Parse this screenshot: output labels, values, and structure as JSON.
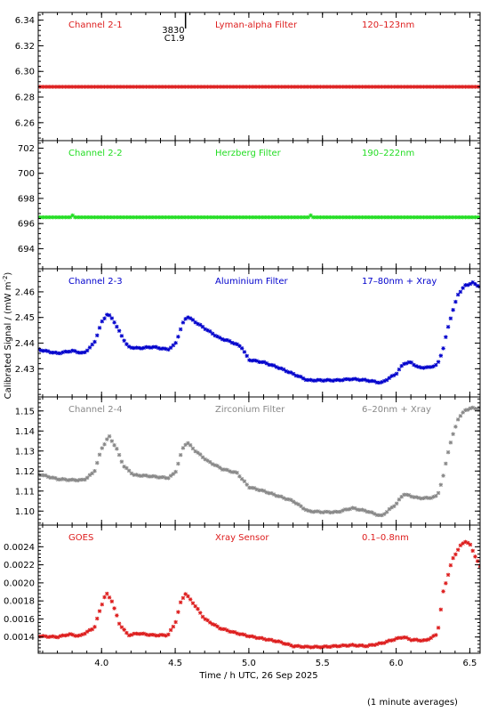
{
  "chart_data": {
    "type": "scatter",
    "x_label": "Time / h UTC, 26 Sep 2025",
    "x_range": [
      3.57,
      6.57
    ],
    "x_ticks": [
      4.0,
      4.5,
      5.0,
      5.5,
      6.0,
      6.5
    ],
    "x_tick_labels": [
      "4.0",
      "4.5",
      "5.0",
      "5.5",
      "6.0",
      "6.5"
    ],
    "y_label": "Calibrated Signal / (mW m",
    "y_label_sup": "-2",
    "y_label_close": ")",
    "footnote": "(1 minute averages)",
    "event_marker": {
      "x": 4.57,
      "label_top": "3830",
      "label_bottom": "C1.9"
    },
    "panels": [
      {
        "channel": "Channel 2-1",
        "filter": "Lyman-alpha Filter",
        "band": "120–123nm",
        "color": "#dd1c1c",
        "y_range": [
          6.246,
          6.346
        ],
        "y_ticks": [
          6.26,
          6.28,
          6.3,
          6.32,
          6.34
        ],
        "y_tick_labels": [
          "6.26",
          "6.28",
          "6.30",
          "6.32",
          "6.34"
        ],
        "model": "flat",
        "base": 6.288
      },
      {
        "channel": "Channel 2-2",
        "filter": "Herzberg Filter",
        "band": "190–222nm",
        "color": "#22dd22",
        "y_range": [
          692.4,
          702.6
        ],
        "y_ticks": [
          694,
          696,
          698,
          700,
          702
        ],
        "y_tick_labels": [
          "694",
          "696",
          "698",
          "700",
          "702"
        ],
        "model": "flat",
        "base": 696.5
      },
      {
        "channel": "Channel 2-3",
        "filter": "Aluminium Filter",
        "band": "17–80nm + Xray",
        "color": "#0000cc",
        "y_range": [
          2.419,
          2.469
        ],
        "y_ticks": [
          2.43,
          2.44,
          2.45,
          2.46
        ],
        "y_tick_labels": [
          "2.43",
          "2.44",
          "2.45",
          "2.46"
        ],
        "model": "flare",
        "keypoints": [
          [
            3.57,
            2.4375
          ],
          [
            3.7,
            2.436
          ],
          [
            3.8,
            2.437
          ],
          [
            3.88,
            2.436
          ],
          [
            3.95,
            2.44
          ],
          [
            4.0,
            2.448
          ],
          [
            4.04,
            2.4515
          ],
          [
            4.08,
            2.449
          ],
          [
            4.13,
            2.4435
          ],
          [
            4.18,
            2.4385
          ],
          [
            4.25,
            2.438
          ],
          [
            4.35,
            2.4385
          ],
          [
            4.45,
            2.4375
          ],
          [
            4.5,
            2.4395
          ],
          [
            4.55,
            2.4475
          ],
          [
            4.58,
            2.4505
          ],
          [
            4.63,
            2.4485
          ],
          [
            4.72,
            2.445
          ],
          [
            4.8,
            2.442
          ],
          [
            4.88,
            2.4405
          ],
          [
            4.95,
            2.4385
          ],
          [
            5.0,
            2.4335
          ],
          [
            5.1,
            2.4325
          ],
          [
            5.2,
            2.4305
          ],
          [
            5.3,
            2.428
          ],
          [
            5.4,
            2.4255
          ],
          [
            5.5,
            2.4255
          ],
          [
            5.6,
            2.4255
          ],
          [
            5.7,
            2.426
          ],
          [
            5.8,
            2.4255
          ],
          [
            5.9,
            2.4245
          ],
          [
            6.0,
            2.428
          ],
          [
            6.05,
            2.432
          ],
          [
            6.1,
            2.4325
          ],
          [
            6.15,
            2.4305
          ],
          [
            6.22,
            2.4305
          ],
          [
            6.28,
            2.4315
          ],
          [
            6.32,
            2.438
          ],
          [
            6.36,
            2.448
          ],
          [
            6.42,
            2.459
          ],
          [
            6.47,
            2.4625
          ],
          [
            6.52,
            2.4635
          ],
          [
            6.57,
            2.462
          ]
        ]
      },
      {
        "channel": "Channel 2-4",
        "filter": "Zirconium Filter",
        "band": "6–20nm + Xray",
        "color": "#888888",
        "y_range": [
          1.093,
          1.157
        ],
        "y_ticks": [
          1.1,
          1.11,
          1.12,
          1.13,
          1.14,
          1.15
        ],
        "y_tick_labels": [
          "1.10",
          "1.11",
          "1.12",
          "1.13",
          "1.14",
          "1.15"
        ],
        "model": "flare",
        "keypoints": [
          [
            3.57,
            1.1185
          ],
          [
            3.7,
            1.116
          ],
          [
            3.8,
            1.1155
          ],
          [
            3.88,
            1.1155
          ],
          [
            3.95,
            1.1195
          ],
          [
            4.0,
            1.131
          ],
          [
            4.05,
            1.1375
          ],
          [
            4.1,
            1.1315
          ],
          [
            4.15,
            1.1225
          ],
          [
            4.22,
            1.118
          ],
          [
            4.32,
            1.1175
          ],
          [
            4.45,
            1.1165
          ],
          [
            4.5,
            1.119
          ],
          [
            4.55,
            1.131
          ],
          [
            4.58,
            1.1345
          ],
          [
            4.63,
            1.1305
          ],
          [
            4.72,
            1.125
          ],
          [
            4.82,
            1.121
          ],
          [
            4.92,
            1.119
          ],
          [
            5.0,
            1.112
          ],
          [
            5.1,
            1.11
          ],
          [
            5.2,
            1.1075
          ],
          [
            5.3,
            1.105
          ],
          [
            5.4,
            1.1
          ],
          [
            5.5,
            1.0995
          ],
          [
            5.6,
            1.0995
          ],
          [
            5.7,
            1.1015
          ],
          [
            5.8,
            1.1
          ],
          [
            5.9,
            1.0975
          ],
          [
            6.0,
            1.1035
          ],
          [
            6.05,
            1.1085
          ],
          [
            6.1,
            1.1075
          ],
          [
            6.15,
            1.1065
          ],
          [
            6.22,
            1.1065
          ],
          [
            6.28,
            1.1075
          ],
          [
            6.32,
            1.1175
          ],
          [
            6.36,
            1.132
          ],
          [
            6.42,
            1.146
          ],
          [
            6.47,
            1.1505
          ],
          [
            6.52,
            1.1515
          ],
          [
            6.57,
            1.151
          ]
        ]
      },
      {
        "channel": "GOES",
        "filter": "Xray Sensor",
        "band": "0.1–0.8nm",
        "color": "#dd1c1c",
        "y_range": [
          0.00122,
          0.00264
        ],
        "y_ticks": [
          0.0014,
          0.0016,
          0.0018,
          0.002,
          0.0022,
          0.0024
        ],
        "y_tick_labels": [
          "0.0014",
          "0.0016",
          "0.0018",
          "0.0020",
          "0.0022",
          "0.0024"
        ],
        "model": "flare",
        "keypoints": [
          [
            3.57,
            0.00141
          ],
          [
            3.7,
            0.0014
          ],
          [
            3.78,
            0.00143
          ],
          [
            3.85,
            0.00141
          ],
          [
            3.95,
            0.0015
          ],
          [
            4.0,
            0.00175
          ],
          [
            4.03,
            0.00189
          ],
          [
            4.07,
            0.0018
          ],
          [
            4.12,
            0.00155
          ],
          [
            4.18,
            0.00142
          ],
          [
            4.25,
            0.00144
          ],
          [
            4.35,
            0.00142
          ],
          [
            4.45,
            0.00142
          ],
          [
            4.5,
            0.00155
          ],
          [
            4.54,
            0.0018
          ],
          [
            4.57,
            0.00188
          ],
          [
            4.62,
            0.00178
          ],
          [
            4.7,
            0.0016
          ],
          [
            4.8,
            0.0015
          ],
          [
            4.9,
            0.00145
          ],
          [
            5.0,
            0.00141
          ],
          [
            5.1,
            0.00138
          ],
          [
            5.2,
            0.00135
          ],
          [
            5.3,
            0.0013
          ],
          [
            5.4,
            0.00129
          ],
          [
            5.5,
            0.00129
          ],
          [
            5.6,
            0.0013
          ],
          [
            5.7,
            0.00131
          ],
          [
            5.8,
            0.0013
          ],
          [
            5.9,
            0.00133
          ],
          [
            6.0,
            0.00138
          ],
          [
            6.05,
            0.0014
          ],
          [
            6.1,
            0.00137
          ],
          [
            6.2,
            0.00136
          ],
          [
            6.28,
            0.00143
          ],
          [
            6.32,
            0.0019
          ],
          [
            6.38,
            0.00225
          ],
          [
            6.43,
            0.0024
          ],
          [
            6.47,
            0.00246
          ],
          [
            6.5,
            0.00243
          ],
          [
            6.53,
            0.00232
          ],
          [
            6.57,
            0.00218
          ]
        ]
      }
    ]
  }
}
